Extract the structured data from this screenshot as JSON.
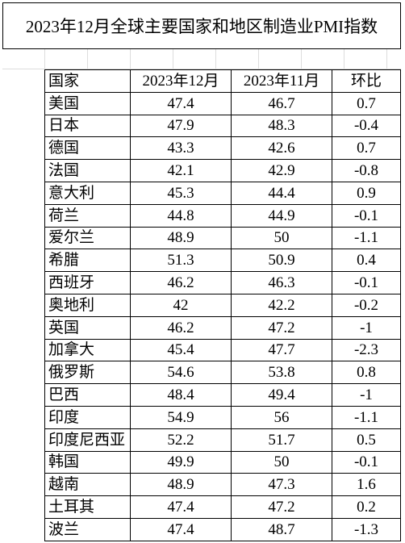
{
  "title": "2023年12月全球主要国家和地区制造业PMI指数",
  "table": {
    "header": [
      "国家",
      "2023年12月",
      "2023年11月",
      "环比"
    ],
    "rows": [
      [
        "美国",
        47.4,
        46.7,
        0.7
      ],
      [
        "日本",
        47.9,
        48.3,
        -0.4
      ],
      [
        "德国",
        43.3,
        42.6,
        0.7
      ],
      [
        "法国",
        42.1,
        42.9,
        -0.8
      ],
      [
        "意大利",
        45.3,
        44.4,
        0.9
      ],
      [
        "荷兰",
        44.8,
        44.9,
        -0.1
      ],
      [
        "爱尔兰",
        48.9,
        50,
        -1.1
      ],
      [
        "希腊",
        51.3,
        50.9,
        0.4
      ],
      [
        "西班牙",
        46.2,
        46.3,
        -0.1
      ],
      [
        "奥地利",
        42,
        42.2,
        -0.2
      ],
      [
        "英国",
        46.2,
        47.2,
        -1
      ],
      [
        "加拿大",
        45.4,
        47.7,
        -2.3
      ],
      [
        "俄罗斯",
        54.6,
        53.8,
        0.8
      ],
      [
        "巴西",
        48.4,
        49.4,
        -1
      ],
      [
        "印度",
        54.9,
        56,
        -1.1
      ],
      [
        "印度尼西亚",
        52.2,
        51.7,
        0.5
      ],
      [
        "韩国",
        49.9,
        50,
        -0.1
      ],
      [
        "越南",
        48.9,
        47.3,
        1.6
      ],
      [
        "土耳其",
        47.4,
        47.2,
        0.2
      ],
      [
        "波兰",
        47.4,
        48.7,
        -1.3
      ]
    ]
  }
}
